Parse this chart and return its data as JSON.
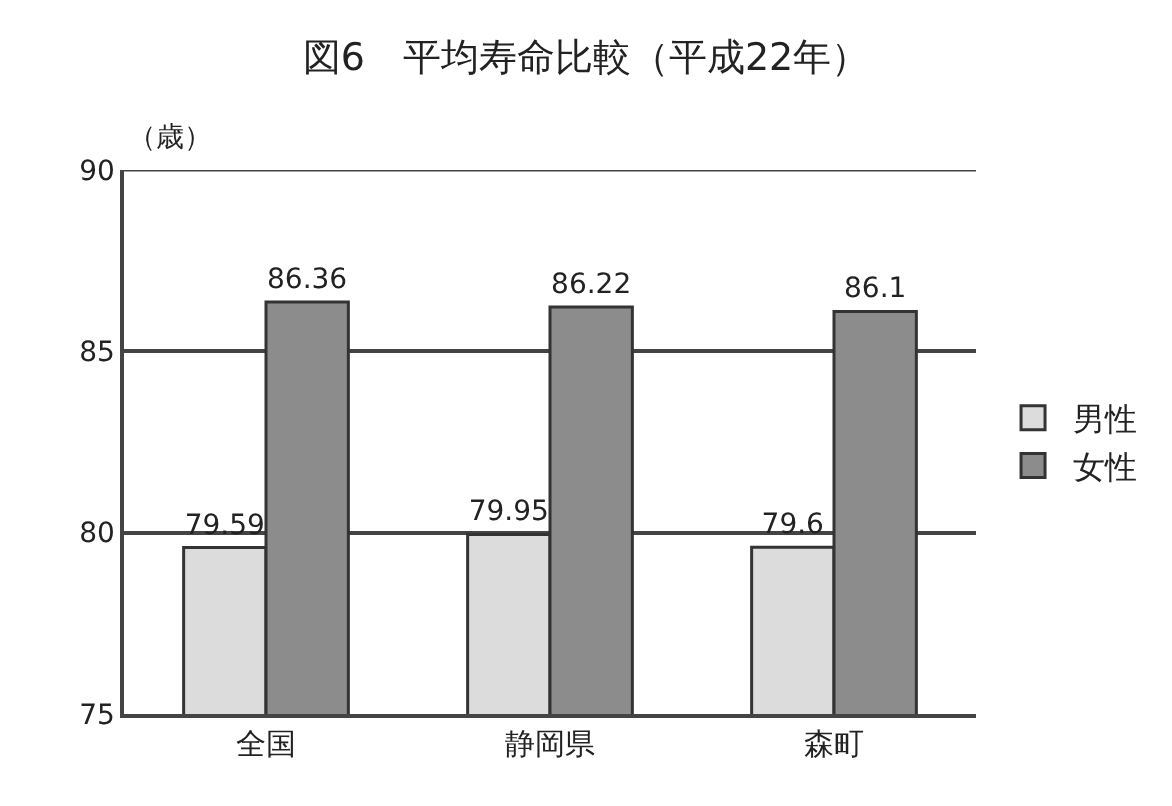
{
  "chart_data": {
    "type": "bar",
    "title": "図6　平均寿命比較（平成22年）",
    "ylabel": "（歳）",
    "categories": [
      "全国",
      "静岡県",
      "森町"
    ],
    "series": [
      {
        "name": "男性",
        "color": "#dcdcdc",
        "values": [
          79.59,
          79.95,
          79.6
        ]
      },
      {
        "name": "女性",
        "color": "#8c8c8c",
        "values": [
          86.36,
          86.22,
          86.1
        ]
      }
    ],
    "ylim": [
      75,
      90
    ],
    "yticks": [
      75,
      80,
      85,
      90
    ],
    "grid": "y",
    "legend": "right",
    "data_labels": true
  }
}
